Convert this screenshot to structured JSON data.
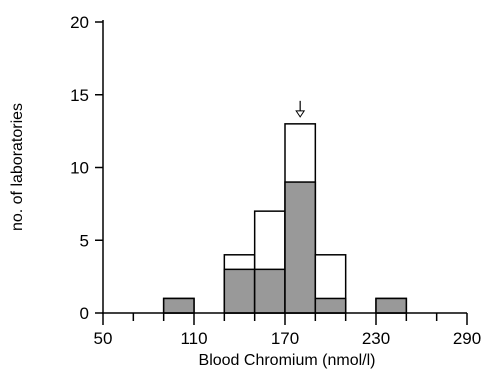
{
  "chart_data": {
    "type": "bar",
    "subtype": "stacked-histogram",
    "title": "",
    "xlabel": "Blood Chromium (nmol/l)",
    "ylabel": "no. of laboratories",
    "xlim": [
      50,
      290
    ],
    "ylim": [
      0,
      20
    ],
    "x_major_ticks": [
      50,
      110,
      170,
      230,
      290
    ],
    "x_minor_ticks": [
      70,
      90,
      130,
      150,
      190,
      210,
      250,
      270
    ],
    "y_ticks": [
      0,
      5,
      10,
      15,
      20
    ],
    "bins": [
      {
        "start": 90,
        "end": 110,
        "shaded": 1,
        "total": 1
      },
      {
        "start": 130,
        "end": 150,
        "shaded": 3,
        "total": 4
      },
      {
        "start": 150,
        "end": 170,
        "shaded": 3,
        "total": 7
      },
      {
        "start": 170,
        "end": 190,
        "shaded": 9,
        "total": 13
      },
      {
        "start": 190,
        "end": 210,
        "shaded": 1,
        "total": 4
      },
      {
        "start": 230,
        "end": 250,
        "shaded": 1,
        "total": 1
      }
    ],
    "target_value": 180,
    "grid": false,
    "colors": {
      "shaded": "#999999",
      "unshaded": "#ffffff",
      "outline": "#000000"
    }
  }
}
